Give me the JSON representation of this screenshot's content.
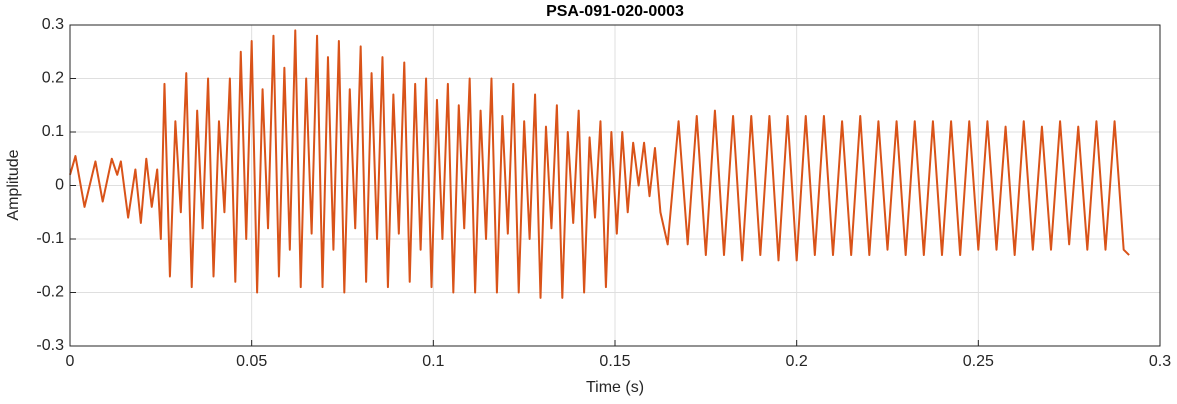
{
  "chart_data": {
    "type": "line",
    "title": "PSA-091-020-0003",
    "x_label": "Time (s)",
    "y_label": "Amplitude",
    "color": "#d95319",
    "grid": true,
    "xlim": [
      0,
      0.3
    ],
    "xticks": [
      0,
      0.05,
      0.1,
      0.15,
      0.2,
      0.25,
      0.3
    ],
    "ylim": [
      -0.3,
      0.3
    ],
    "yticks": [
      -0.3,
      -0.2,
      -0.1,
      0,
      0.1,
      0.2,
      0.3
    ],
    "x": [
      0,
      0.0015,
      0.004,
      0.007,
      0.009,
      0.0115,
      0.013,
      0.014,
      0.016,
      0.018,
      0.0195,
      0.021,
      0.0225,
      0.024,
      0.025,
      0.026,
      0.0275,
      0.029,
      0.0305,
      0.032,
      0.0335,
      0.035,
      0.0365,
      0.038,
      0.0395,
      0.041,
      0.0425,
      0.044,
      0.0455,
      0.047,
      0.0485,
      0.05,
      0.0515,
      0.053,
      0.0545,
      0.056,
      0.0575,
      0.059,
      0.0605,
      0.062,
      0.0635,
      0.065,
      0.0665,
      0.068,
      0.0695,
      0.071,
      0.0725,
      0.074,
      0.0755,
      0.077,
      0.0785,
      0.08,
      0.0815,
      0.083,
      0.0845,
      0.086,
      0.0875,
      0.089,
      0.0905,
      0.092,
      0.0935,
      0.095,
      0.0965,
      0.098,
      0.0995,
      0.101,
      0.1025,
      0.104,
      0.1055,
      0.107,
      0.1085,
      0.11,
      0.1115,
      0.113,
      0.1145,
      0.116,
      0.1175,
      0.119,
      0.1205,
      0.122,
      0.1235,
      0.125,
      0.1265,
      0.128,
      0.1295,
      0.131,
      0.1325,
      0.134,
      0.1355,
      0.137,
      0.1385,
      0.14,
      0.1415,
      0.143,
      0.1445,
      0.146,
      0.1475,
      0.149,
      0.1505,
      0.152,
      0.1535,
      0.155,
      0.1565,
      0.158,
      0.1595,
      0.161,
      0.1625,
      0.1645,
      0.1675,
      0.17,
      0.1725,
      0.175,
      0.1775,
      0.18,
      0.1825,
      0.185,
      0.1875,
      0.19,
      0.1925,
      0.195,
      0.1975,
      0.2,
      0.2025,
      0.205,
      0.2075,
      0.21,
      0.2125,
      0.215,
      0.2175,
      0.22,
      0.2225,
      0.225,
      0.2275,
      0.23,
      0.2325,
      0.235,
      0.2375,
      0.24,
      0.2425,
      0.245,
      0.2475,
      0.25,
      0.2525,
      0.255,
      0.2575,
      0.26,
      0.2625,
      0.265,
      0.2675,
      0.27,
      0.2725,
      0.275,
      0.2775,
      0.28,
      0.2825,
      0.285,
      0.2875,
      0.29,
      0.2915
    ],
    "values": [
      0.02,
      0.055,
      -0.04,
      0.045,
      -0.03,
      0.05,
      0.02,
      0.045,
      -0.06,
      0.03,
      -0.07,
      0.05,
      -0.04,
      0.03,
      -0.1,
      0.19,
      -0.17,
      0.12,
      -0.05,
      0.21,
      -0.19,
      0.14,
      -0.08,
      0.2,
      -0.17,
      0.12,
      -0.05,
      0.2,
      -0.18,
      0.25,
      -0.1,
      0.27,
      -0.2,
      0.18,
      -0.08,
      0.28,
      -0.17,
      0.22,
      -0.12,
      0.29,
      -0.19,
      0.2,
      -0.09,
      0.28,
      -0.19,
      0.24,
      -0.12,
      0.27,
      -0.2,
      0.18,
      -0.08,
      0.26,
      -0.18,
      0.21,
      -0.1,
      0.24,
      -0.19,
      0.17,
      -0.09,
      0.23,
      -0.18,
      0.19,
      -0.12,
      0.2,
      -0.19,
      0.16,
      -0.1,
      0.19,
      -0.2,
      0.15,
      -0.08,
      0.2,
      -0.2,
      0.14,
      -0.1,
      0.2,
      -0.2,
      0.13,
      -0.09,
      0.19,
      -0.2,
      0.12,
      -0.1,
      0.17,
      -0.21,
      0.11,
      -0.08,
      0.15,
      -0.21,
      0.1,
      -0.07,
      0.14,
      -0.2,
      0.09,
      -0.06,
      0.12,
      -0.19,
      0.1,
      -0.09,
      0.1,
      -0.05,
      0.08,
      0,
      0.08,
      -0.02,
      0.07,
      -0.05,
      -0.11,
      0.12,
      -0.11,
      0.13,
      -0.13,
      0.14,
      -0.13,
      0.13,
      -0.14,
      0.13,
      -0.13,
      0.13,
      -0.14,
      0.13,
      -0.14,
      0.13,
      -0.13,
      0.13,
      -0.13,
      0.12,
      -0.13,
      0.13,
      -0.13,
      0.12,
      -0.12,
      0.12,
      -0.13,
      0.12,
      -0.13,
      0.12,
      -0.13,
      0.12,
      -0.13,
      0.12,
      -0.12,
      0.12,
      -0.12,
      0.11,
      -0.13,
      0.12,
      -0.12,
      0.11,
      -0.12,
      0.12,
      -0.11,
      0.11,
      -0.12,
      0.12,
      -0.12,
      0.12,
      -0.12,
      -0.13
    ]
  }
}
